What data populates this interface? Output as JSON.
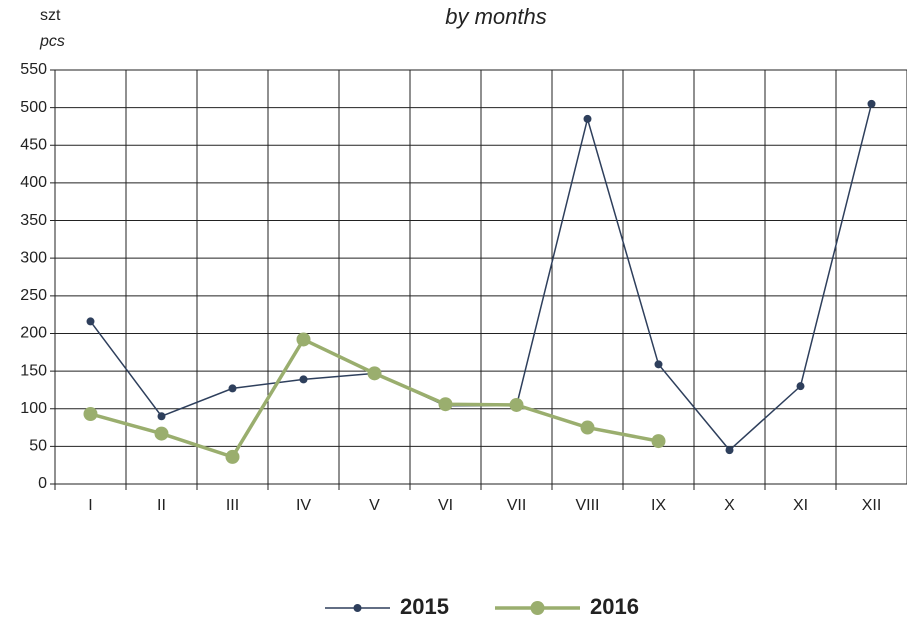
{
  "chart_data": {
    "type": "line",
    "title": "by months",
    "y_unit": "szt",
    "y_unit_en": "pcs",
    "categories": [
      "I",
      "II",
      "III",
      "IV",
      "V",
      "VI",
      "VII",
      "VIII",
      "IX",
      "X",
      "XI",
      "XII"
    ],
    "series": [
      {
        "name": "2015",
        "color": "#2e3f5c",
        "values": [
          216,
          90,
          127,
          139,
          147,
          104,
          104,
          485,
          159,
          45,
          130,
          505
        ]
      },
      {
        "name": "2016",
        "color": "#9aae6e",
        "values": [
          93,
          67,
          36,
          192,
          147,
          106,
          105,
          75,
          57,
          null,
          null,
          null
        ]
      }
    ],
    "ylim": [
      0,
      550
    ],
    "yticks": [
      0,
      50,
      100,
      150,
      200,
      250,
      300,
      350,
      400,
      450,
      500,
      550
    ],
    "grid": true,
    "legend": "bottom"
  }
}
